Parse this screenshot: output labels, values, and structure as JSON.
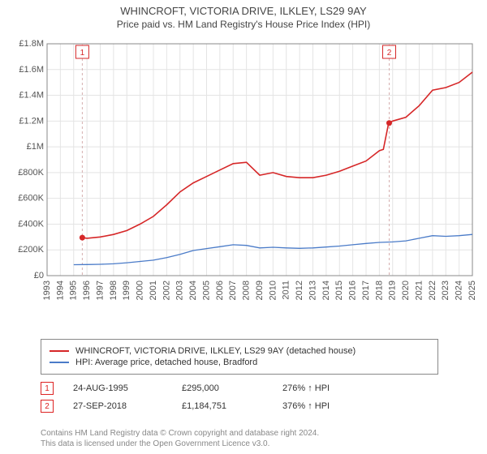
{
  "title": "WHINCROFT, VICTORIA DRIVE, ILKLEY, LS29 9AY",
  "subtitle": "Price paid vs. HM Land Registry's House Price Index (HPI)",
  "chart": {
    "type": "line",
    "background_color": "#ffffff",
    "grid_color": "#e4e4e4",
    "axis_color": "#888888",
    "label_color": "#555555",
    "label_fontsize": 11,
    "xlim": [
      1993,
      2025
    ],
    "ylim": [
      0,
      1800000
    ],
    "ytick_step": 200000,
    "yticks": [
      "£0",
      "£200K",
      "£400K",
      "£600K",
      "£800K",
      "£1M",
      "£1.2M",
      "£1.4M",
      "£1.6M",
      "£1.8M"
    ],
    "xticks": [
      1993,
      1994,
      1995,
      1996,
      1997,
      1998,
      1999,
      2000,
      2001,
      2002,
      2003,
      2004,
      2005,
      2006,
      2007,
      2008,
      2009,
      2010,
      2011,
      2012,
      2013,
      2014,
      2015,
      2016,
      2017,
      2018,
      2019,
      2020,
      2021,
      2022,
      2023,
      2024,
      2025
    ],
    "xaxis_label_rotation": -90,
    "series": [
      {
        "name": "WHINCROFT, VICTORIA DRIVE, ILKLEY, LS29 9AY (detached house)",
        "color": "#d62728",
        "line_width": 1.6,
        "points": [
          [
            1995.65,
            295000
          ],
          [
            1996,
            290000
          ],
          [
            1997,
            300000
          ],
          [
            1998,
            320000
          ],
          [
            1999,
            350000
          ],
          [
            2000,
            400000
          ],
          [
            2001,
            460000
          ],
          [
            2002,
            550000
          ],
          [
            2003,
            650000
          ],
          [
            2004,
            720000
          ],
          [
            2005,
            770000
          ],
          [
            2006,
            820000
          ],
          [
            2007,
            870000
          ],
          [
            2008,
            880000
          ],
          [
            2009,
            780000
          ],
          [
            2010,
            800000
          ],
          [
            2011,
            770000
          ],
          [
            2012,
            760000
          ],
          [
            2013,
            760000
          ],
          [
            2014,
            780000
          ],
          [
            2015,
            810000
          ],
          [
            2016,
            850000
          ],
          [
            2017,
            890000
          ],
          [
            2018,
            970000
          ],
          [
            2018.3,
            980000
          ],
          [
            2018.7,
            1184751
          ],
          [
            2019,
            1200000
          ],
          [
            2020,
            1230000
          ],
          [
            2021,
            1320000
          ],
          [
            2022,
            1440000
          ],
          [
            2023,
            1460000
          ],
          [
            2024,
            1500000
          ],
          [
            2025,
            1580000
          ]
        ],
        "sale_markers": [
          {
            "x": 1995.65,
            "y": 295000,
            "label": "1"
          },
          {
            "x": 2018.74,
            "y": 1184751,
            "label": "2"
          }
        ]
      },
      {
        "name": "HPI: Average price, detached house, Bradford",
        "color": "#4a7bc8",
        "line_width": 1.3,
        "points": [
          [
            1995,
            85000
          ],
          [
            1996,
            86000
          ],
          [
            1997,
            88000
          ],
          [
            1998,
            92000
          ],
          [
            1999,
            100000
          ],
          [
            2000,
            110000
          ],
          [
            2001,
            120000
          ],
          [
            2002,
            140000
          ],
          [
            2003,
            165000
          ],
          [
            2004,
            195000
          ],
          [
            2005,
            210000
          ],
          [
            2006,
            225000
          ],
          [
            2007,
            240000
          ],
          [
            2008,
            235000
          ],
          [
            2009,
            215000
          ],
          [
            2010,
            220000
          ],
          [
            2011,
            215000
          ],
          [
            2012,
            212000
          ],
          [
            2013,
            215000
          ],
          [
            2014,
            222000
          ],
          [
            2015,
            230000
          ],
          [
            2016,
            240000
          ],
          [
            2017,
            250000
          ],
          [
            2018,
            258000
          ],
          [
            2019,
            262000
          ],
          [
            2020,
            270000
          ],
          [
            2021,
            290000
          ],
          [
            2022,
            310000
          ],
          [
            2023,
            305000
          ],
          [
            2024,
            310000
          ],
          [
            2025,
            320000
          ]
        ]
      }
    ],
    "marker_style": {
      "box_border": "#d62728",
      "box_fill": "#ffffff",
      "label_color": "#d62728",
      "dot_color": "#d62728",
      "dot_radius": 3.5,
      "dashed_line_color": "#d6b0b0"
    }
  },
  "legend": {
    "rows": [
      {
        "color": "#d62728",
        "label": "WHINCROFT, VICTORIA DRIVE, ILKLEY, LS29 9AY (detached house)"
      },
      {
        "color": "#4a7bc8",
        "label": "HPI: Average price, detached house, Bradford"
      }
    ]
  },
  "markers_table": [
    {
      "num": "1",
      "date": "24-AUG-1995",
      "price": "£295,000",
      "change": "276% ↑ HPI"
    },
    {
      "num": "2",
      "date": "27-SEP-2018",
      "price": "£1,184,751",
      "change": "376% ↑ HPI"
    }
  ],
  "footer_line1": "Contains HM Land Registry data © Crown copyright and database right 2024.",
  "footer_line2": "This data is licensed under the Open Government Licence v3.0."
}
